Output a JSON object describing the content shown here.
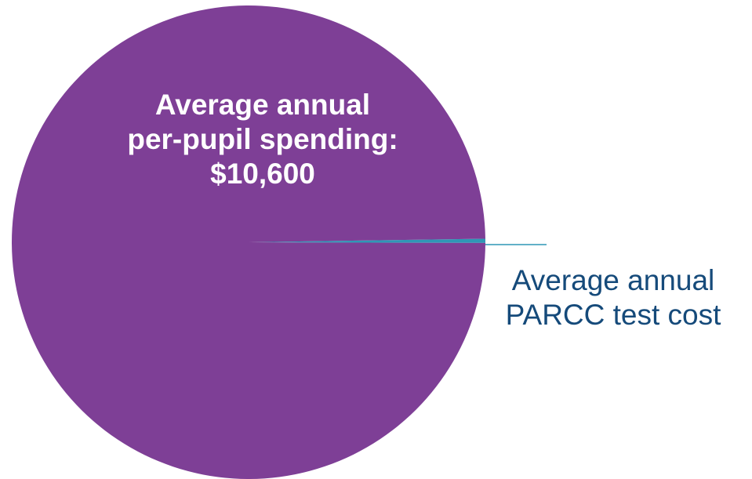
{
  "chart_data": {
    "type": "pie",
    "slices": [
      {
        "label_line1": "Average annual",
        "label_line2": "per-pupil spending:",
        "value_text": "$10,600",
        "value": 10600,
        "color": "#7e3f96"
      },
      {
        "label_line1": "Average annual",
        "label_line2": "PARCC test cost",
        "value": 30,
        "color": "#2f97b6"
      }
    ]
  }
}
